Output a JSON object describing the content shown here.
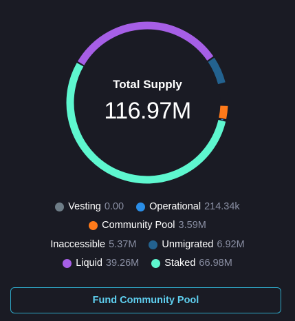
{
  "supply": {
    "title": "Total Supply",
    "total": "116.97M"
  },
  "chart_data": {
    "type": "donut",
    "title": "Total Supply",
    "total": 116.97,
    "unit": "M",
    "segments": [
      {
        "name": "Staked",
        "value": 66.98,
        "color": "#5ef7cf"
      },
      {
        "name": "Liquid",
        "value": 39.26,
        "color": "#a65fe6"
      },
      {
        "name": "Unmigrated",
        "value": 6.92,
        "color": "#23628f"
      },
      {
        "name": "Inaccessible",
        "value": 5.37,
        "color": "#1a1b24"
      },
      {
        "name": "Community Pool",
        "value": 3.59,
        "color": "#ff7a1a"
      },
      {
        "name": "Operational",
        "value": 0.214,
        "color": "#2a8de6"
      },
      {
        "name": "Vesting",
        "value": 0.0,
        "color": "#6e7d87"
      }
    ]
  },
  "legend": {
    "vesting": {
      "label": "Vesting",
      "value": "0.00",
      "color": "#6e7d87"
    },
    "operational": {
      "label": "Operational",
      "value": "214.34k",
      "color": "#2a8de6"
    },
    "community_pool": {
      "label": "Community Pool",
      "value": "3.59M",
      "color": "#ff7a1a"
    },
    "inaccessible": {
      "label": "Inaccessible",
      "value": "5.37M"
    },
    "unmigrated": {
      "label": "Unmigrated",
      "value": "6.92M",
      "color": "#23628f"
    },
    "liquid": {
      "label": "Liquid",
      "value": "39.26M",
      "color": "#a65fe6"
    },
    "staked": {
      "label": "Staked",
      "value": "66.98M",
      "color": "#5ef7cf"
    }
  },
  "fund_button": {
    "label": "Fund Community Pool"
  }
}
